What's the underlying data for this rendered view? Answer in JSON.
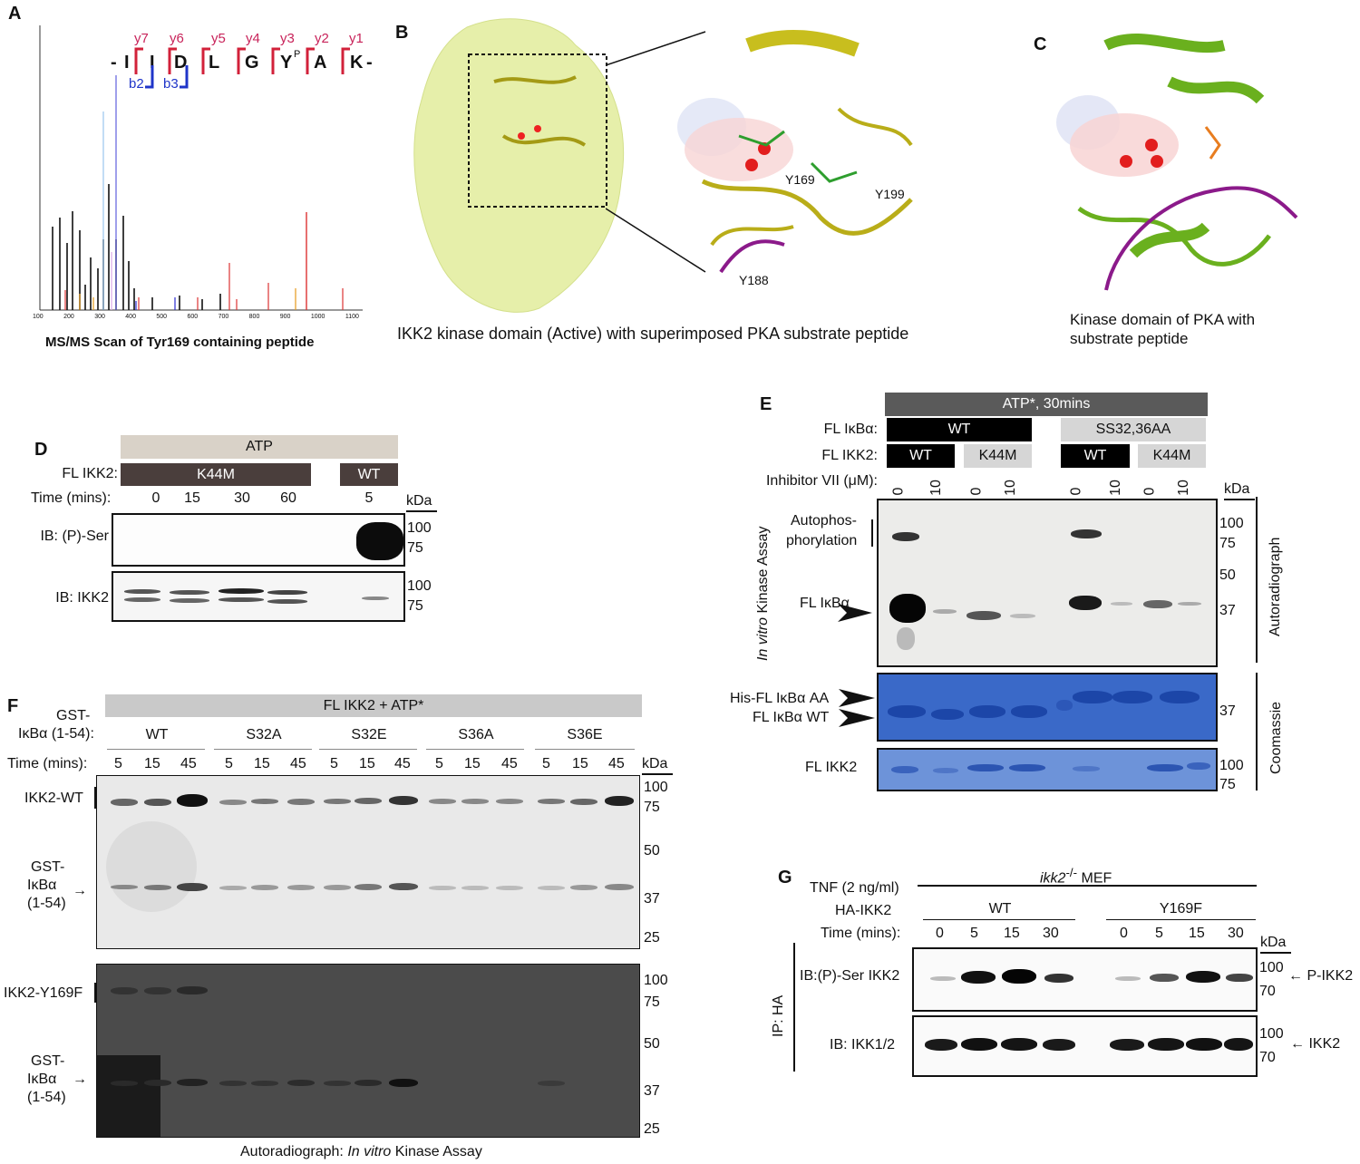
{
  "panelA": {
    "label": "A",
    "caption": "MS/MS Scan of Tyr169 containing peptide",
    "peptide": {
      "prefix": "-",
      "residues": [
        "I",
        "I",
        "D",
        "L",
        "G",
        "Y",
        "A",
        "K"
      ],
      "phospho_superscript": "P",
      "suffix": "-"
    },
    "y_ions": [
      "y7",
      "y6",
      "y5",
      "y4",
      "y3",
      "y2",
      "y1"
    ],
    "b_ions": [
      "b2",
      "b3"
    ],
    "x_ticks": [
      "100",
      "200",
      "300",
      "400",
      "500",
      "600",
      "700",
      "800",
      "900",
      "1000",
      "1100"
    ]
  },
  "panelB": {
    "label": "B",
    "caption": "IKK2 kinase domain (Active) with superimposed PKA substrate peptide",
    "residue_labels": [
      "Y169",
      "Y199",
      "Y188"
    ]
  },
  "panelC": {
    "label": "C",
    "caption_line1": "Kinase domain of PKA with",
    "caption_line2": "substrate peptide"
  },
  "panelD": {
    "label": "D",
    "atp": "ATP",
    "fl_ikk2_label": "FL IKK2:",
    "k44m": "K44M",
    "wt": "WT",
    "time_label": "Time (mins):",
    "times": [
      "0",
      "15",
      "30",
      "60",
      "5"
    ],
    "kda": "kDa",
    "blot1_label": "IB: (P)-Ser",
    "blot2_label": "IB: IKK2",
    "markers1": [
      "100",
      "75"
    ],
    "markers2": [
      "100",
      "75"
    ]
  },
  "panelE": {
    "label": "E",
    "header": "ATP*, 30mins",
    "fl_ikba_label": "FL IκBα:",
    "fl_ikba_groups": [
      "WT",
      "SS32,36AA"
    ],
    "fl_ikk2_label": "FL IKK2:",
    "fl_ikk2_groups": [
      "WT",
      "K44M",
      "WT",
      "K44M"
    ],
    "inhibitor_label": "Inhibitor VII (μM):",
    "inhibitor_values": [
      "0",
      "10",
      "0",
      "10",
      "0",
      "10",
      "0",
      "10"
    ],
    "kda": "kDa",
    "assay_label_italic": "In vitro",
    "assay_label_rest": " Kinase Assay",
    "autophos_1": "Autophos-",
    "autophos_2": "phorylation",
    "fl_ikba": "FL IκBα",
    "autoradio_markers": [
      "100",
      "75",
      "50",
      "37"
    ],
    "autoradiograph": "Autoradiograph",
    "his_label": "His-FL IκBα AA",
    "wt_label": "FL IκBα WT",
    "coomassie_marker": "37",
    "fl_ikk2": "FL IKK2",
    "ikk2_markers": [
      "100",
      "75"
    ],
    "coomassie": "Coomassie"
  },
  "panelF": {
    "label": "F",
    "header": "FL IKK2 + ATP*",
    "gst_line1": "GST-",
    "gst_line2": "IκBα (1-54):",
    "groups": [
      "WT",
      "S32A",
      "S32E",
      "S36A",
      "S36E"
    ],
    "time_label": "Time (mins):",
    "times": [
      "5",
      "15",
      "45"
    ],
    "kda": "kDa",
    "gel1_protein": "IKK2-WT",
    "gel2_protein": "IKK2-Y169F",
    "gst_label": [
      "GST-",
      "IκBα",
      "(1-54)"
    ],
    "markers": [
      "100",
      "75",
      "50",
      "37",
      "25"
    ],
    "caption_plain": "Autoradiograph:  ",
    "caption_italic": "In vitro",
    "caption_rest": " Kinase Assay"
  },
  "panelG": {
    "label": "G",
    "tnf": "TNF (2 ng/ml)",
    "mef_italic": "ikk2",
    "mef_sup": "-/-",
    "mef_rest": " MEF",
    "ha_label": "HA-IKK2",
    "groups": [
      "WT",
      "Y169F"
    ],
    "time_label": "Time (mins):",
    "times": [
      "0",
      "5",
      "15",
      "30"
    ],
    "kda": "kDa",
    "ip_label": "IP: HA",
    "blot1_label": "IB:(P)-Ser IKK2",
    "blot2_label": "IB: IKK1/2",
    "markers1": [
      "100",
      "70"
    ],
    "markers2": [
      "100",
      "70"
    ],
    "arrow1": "P-IKK2",
    "arrow2": "IKK2"
  }
}
